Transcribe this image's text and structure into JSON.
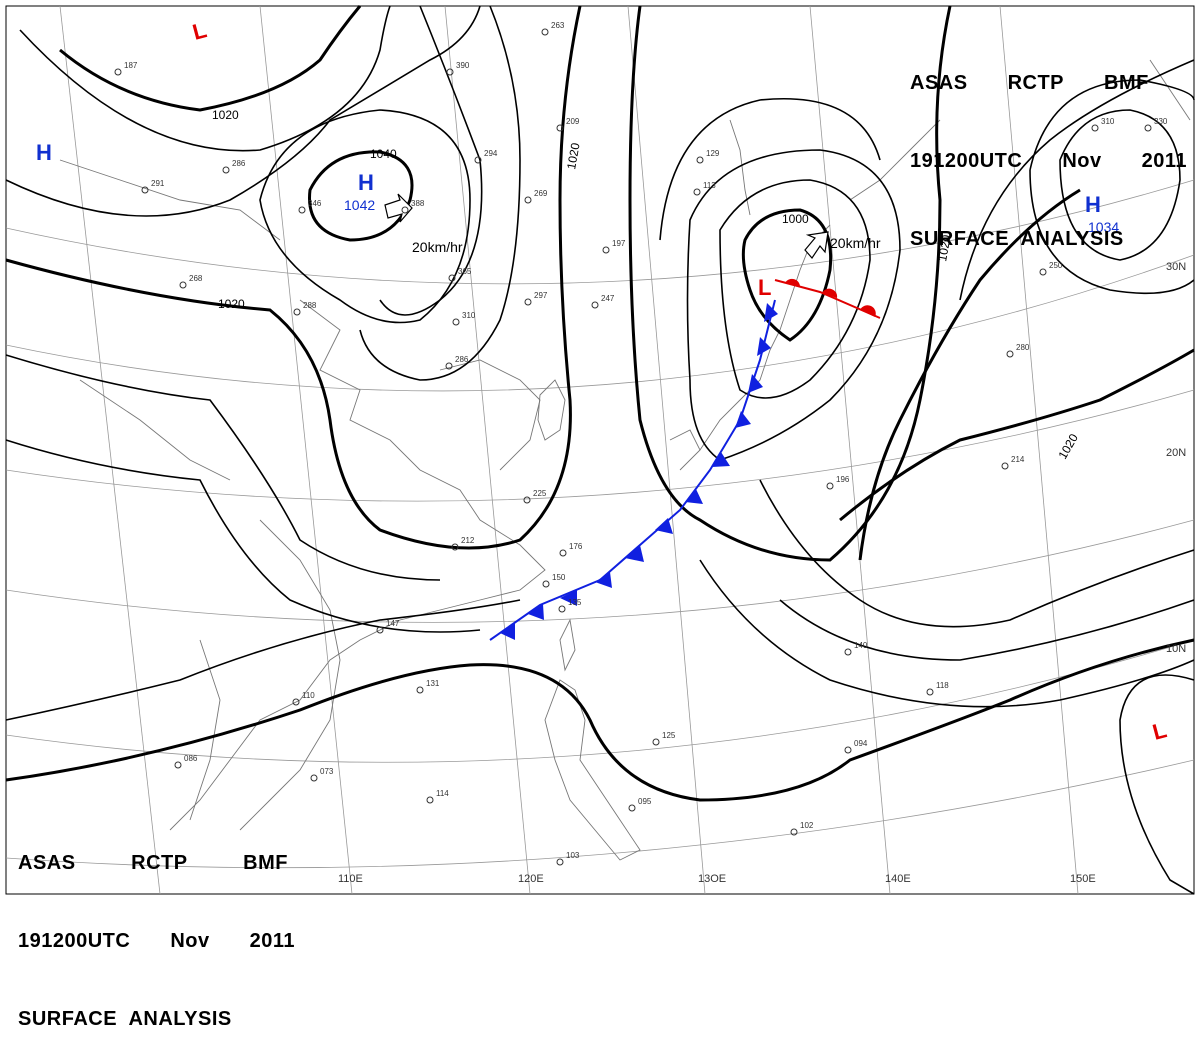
{
  "header": {
    "line1": [
      "ASAS",
      "RCTP",
      "BMF"
    ],
    "line2": [
      "191200UTC",
      "Nov",
      "2011"
    ],
    "line3": "SURFACE  ANALYSIS"
  },
  "isobar_labels": {
    "nw_1020": "1020",
    "w_1020": "1020",
    "high_1040": "1040",
    "jp_1020": "1020",
    "low_1000": "1000",
    "e_1020": "1020",
    "se_1020": "1020"
  },
  "systems": [
    {
      "kind": "L",
      "color": "#e00000"
    },
    {
      "kind": "H",
      "color": "#1030d0",
      "value": ""
    },
    {
      "kind": "H",
      "color": "#1030d0",
      "value": "1042",
      "motion": "20km/hr"
    },
    {
      "kind": "L",
      "color": "#e00000",
      "value": "",
      "motion": "20km/hr"
    },
    {
      "kind": "H",
      "color": "#1030d0",
      "value": "1034"
    },
    {
      "kind": "L",
      "color": "#e00000"
    }
  ],
  "longitude_labels": [
    "110E",
    "120E",
    "13OE",
    "140E",
    "150E"
  ],
  "latitude_labels": [
    "10N",
    "20N",
    "30N"
  ],
  "stations": [
    "187",
    "263",
    "390",
    "294",
    "286",
    "346",
    "388",
    "365",
    "310",
    "209",
    "269",
    "197",
    "297",
    "247",
    "129",
    "113",
    "291",
    "268",
    "288",
    "286",
    "225",
    "212",
    "176",
    "150",
    "135",
    "147",
    "131",
    "110",
    "086",
    "073",
    "114",
    "095",
    "103",
    "125",
    "094",
    "102",
    "118",
    "140",
    "196",
    "214",
    "280",
    "250",
    "310",
    "330"
  ],
  "colors": {
    "cold_front": "#1020e0",
    "warm_front": "#e00000",
    "isobar": "#000000",
    "grid": "#888888",
    "coast": "#666666",
    "high": "#1030d0",
    "low": "#e00000"
  }
}
